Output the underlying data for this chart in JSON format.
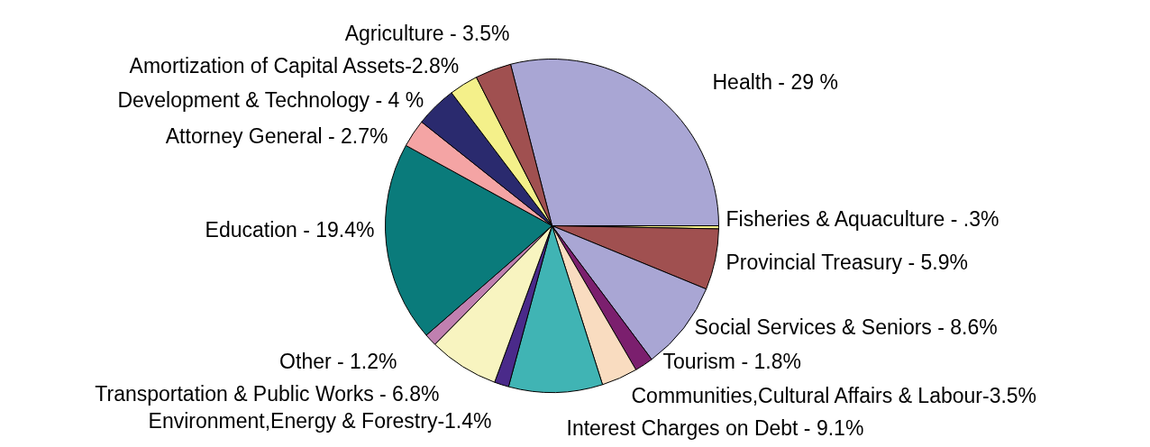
{
  "chart_data": {
    "type": "pie",
    "categories": [
      "Health - 29 %",
      "Fisheries & Aquaculture - .3%",
      "Provincial Treasury - 5.9%",
      "Social Services & Seniors - 8.6%",
      "Tourism - 1.8%",
      "Communities,Cultural Affairs & Labour-3.5%",
      "Interest Charges on Debt - 9.1%",
      "Environment,Energy & Forestry-1.4%",
      "Transportation & Public Works - 6.8%",
      "Other - 1.2%",
      "Education - 19.4%",
      "Attorney General - 2.7%",
      "Development & Technology - 4 %",
      "Amortization of Capital Assets-2.8%",
      "Agriculture - 3.5%"
    ],
    "values": [
      29,
      0.3,
      5.9,
      8.6,
      1.8,
      3.5,
      9.1,
      1.4,
      6.8,
      1.2,
      19.4,
      2.7,
      4,
      2.8,
      3.5
    ],
    "colors": [
      "#a9a6d4",
      "#f5f08a",
      "#a05050",
      "#a9a6d4",
      "#7b1f6e",
      "#f9dcc0",
      "#40b4b4",
      "#4a2a8a",
      "#f8f4c0",
      "#c080b0",
      "#0a7b7b",
      "#f4a4a4",
      "#2a2a6e",
      "#f4f08a",
      "#a05050"
    ]
  }
}
